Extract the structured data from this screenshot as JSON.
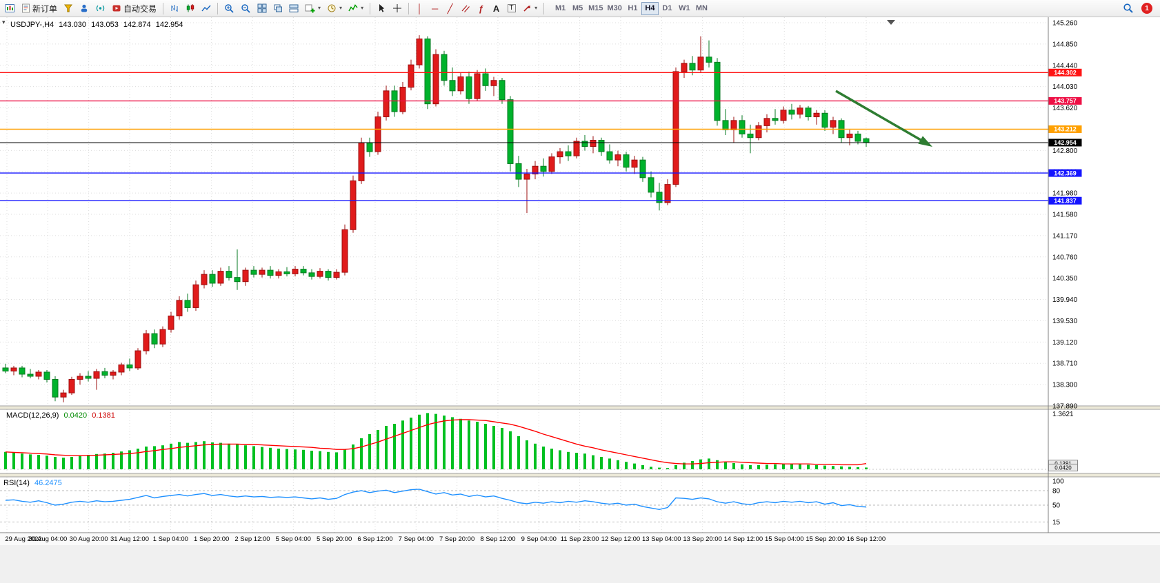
{
  "toolbar": {
    "new_order_label": "新订单",
    "auto_trading_label": "自动交易",
    "timeframes": [
      "M1",
      "M5",
      "M15",
      "M30",
      "H1",
      "H4",
      "D1",
      "W1",
      "MN"
    ],
    "active_timeframe": "H4",
    "notification_count": "1",
    "glyphs": {
      "dropdown": "▾",
      "vertical_line": "│",
      "horizontal_line": "─",
      "trendline": "╱",
      "fibonacci": "ƒ",
      "text_tool": "A",
      "label_tool": "T"
    },
    "icon_names": [
      "new-chart-icon",
      "new-order-icon",
      "market-watch-icon",
      "profiles-icon",
      "signals-icon",
      "auto-trading-icon",
      "bar-chart-icon",
      "candlestick-chart-icon",
      "line-chart-icon",
      "zoom-in-icon",
      "zoom-out-icon",
      "tile-windows-icon",
      "cascade-windows-icon",
      "arrange-windows-icon",
      "add-chart-icon",
      "chart-period-icon",
      "indicators-icon",
      "cursor-icon",
      "crosshair-icon",
      "vertical-line-icon",
      "horizontal-line-icon",
      "trendline-icon",
      "channel-icon",
      "fibonacci-icon",
      "text-icon",
      "label-icon",
      "arrow-tools-icon",
      "search-icon",
      "notification-badge"
    ]
  },
  "chart": {
    "one_click_marker": "▾",
    "symbol_ohlc": {
      "symbol": "USDJPY-,H4",
      "open": "143.030",
      "high": "143.053",
      "low": "142.874",
      "close": "142.954"
    },
    "price_axis_labels": [
      "145.260",
      "144.850",
      "144.440",
      "144.030",
      "143.620",
      "143.210",
      "142.800",
      "142.390",
      "141.980",
      "141.580",
      "141.170",
      "140.760",
      "140.350",
      "139.940",
      "139.530",
      "139.120",
      "138.710",
      "138.300",
      "137.890"
    ],
    "time_axis_labels": [
      "29 Aug 2022",
      "30 Aug 04:00",
      "30 Aug 20:00",
      "31 Aug 12:00",
      "1 Sep 04:00",
      "1 Sep 20:00",
      "2 Sep 12:00",
      "5 Sep 04:00",
      "5 Sep 20:00",
      "6 Sep 12:00",
      "7 Sep 04:00",
      "7 Sep 20:00",
      "8 Sep 12:00",
      "9 Sep 04:00",
      "11 Sep 23:00",
      "12 Sep 12:00",
      "13 Sep 04:00",
      "13 Sep 20:00",
      "14 Sep 12:00",
      "15 Sep 04:00",
      "15 Sep 20:00",
      "16 Sep 12:00"
    ],
    "levels": [
      {
        "label": "144.302",
        "price": 144.302,
        "color": "#ff1414"
      },
      {
        "label": "143.757",
        "price": 143.757,
        "color": "#ee1045"
      },
      {
        "label": "143.212",
        "price": 143.212,
        "color": "#ffa000"
      },
      {
        "label": "142.369",
        "price": 142.369,
        "color": "#1414ff"
      },
      {
        "label": "141.837",
        "price": 141.837,
        "color": "#1414ff"
      }
    ],
    "current_price": {
      "label": "142.954",
      "price": 142.954,
      "color": "#000000"
    },
    "colors": {
      "up": "#e01b1b",
      "up_stroke": "#9c0f0f",
      "down": "#00b22c",
      "down_stroke": "#067a20",
      "grid": "#dcdcdc",
      "macd_hist": "#00c020",
      "macd_signal": "#ff0000",
      "rsi_line": "#1e90ff",
      "arrow": "#2e7d32"
    }
  },
  "indicators": {
    "macd": {
      "name": "MACD(12,26,9)",
      "value_main": "0.0420",
      "value_signal": "0.1381",
      "axis_max": "1.3621"
    },
    "rsi": {
      "name": "RSI(14)",
      "value": "46.2475",
      "axis_labels": [
        "100",
        "80",
        "50",
        "15"
      ],
      "levels": [
        80,
        50,
        15
      ]
    }
  },
  "chart_data": {
    "type": "candlestick",
    "symbol": "USDJPY-",
    "timeframe": "H4",
    "title": "USDJPY- H4 with MACD(12,26,9) and RSI(14)",
    "price_range": [
      137.89,
      145.26
    ],
    "convention": "red body = bullish, green body = bearish",
    "ohlc": [
      [
        138.62,
        138.7,
        138.52,
        138.56
      ],
      [
        138.56,
        138.66,
        138.48,
        138.62
      ],
      [
        138.62,
        138.66,
        138.44,
        138.5
      ],
      [
        138.5,
        138.6,
        138.42,
        138.46
      ],
      [
        138.46,
        138.58,
        138.4,
        138.54
      ],
      [
        138.54,
        138.58,
        138.34,
        138.4
      ],
      [
        138.4,
        138.46,
        137.98,
        138.06
      ],
      [
        138.06,
        138.2,
        137.96,
        138.14
      ],
      [
        138.14,
        138.45,
        138.1,
        138.4
      ],
      [
        138.4,
        138.52,
        138.3,
        138.46
      ],
      [
        138.46,
        138.56,
        138.36,
        138.42
      ],
      [
        138.42,
        138.6,
        138.2,
        138.55
      ],
      [
        138.55,
        138.62,
        138.42,
        138.48
      ],
      [
        138.48,
        138.58,
        138.4,
        138.54
      ],
      [
        138.54,
        138.72,
        138.48,
        138.68
      ],
      [
        138.68,
        138.8,
        138.56,
        138.62
      ],
      [
        138.62,
        139.0,
        138.58,
        138.95
      ],
      [
        138.95,
        139.35,
        138.88,
        139.28
      ],
      [
        139.28,
        139.36,
        139.0,
        139.08
      ],
      [
        139.08,
        139.42,
        139.02,
        139.36
      ],
      [
        139.36,
        139.7,
        139.3,
        139.62
      ],
      [
        139.62,
        140.0,
        139.55,
        139.92
      ],
      [
        139.92,
        140.05,
        139.7,
        139.78
      ],
      [
        139.78,
        140.3,
        139.72,
        140.22
      ],
      [
        140.22,
        140.5,
        140.15,
        140.42
      ],
      [
        140.42,
        140.5,
        140.18,
        140.25
      ],
      [
        140.25,
        140.55,
        140.2,
        140.48
      ],
      [
        140.48,
        140.58,
        140.3,
        140.36
      ],
      [
        140.36,
        140.9,
        140.12,
        140.28
      ],
      [
        140.28,
        140.55,
        140.2,
        140.5
      ],
      [
        140.5,
        140.58,
        140.36,
        140.42
      ],
      [
        140.42,
        140.55,
        140.36,
        140.5
      ],
      [
        140.5,
        140.58,
        140.34,
        140.4
      ],
      [
        140.4,
        140.52,
        140.34,
        140.47
      ],
      [
        140.47,
        140.56,
        140.38,
        140.43
      ],
      [
        140.43,
        140.58,
        140.38,
        140.52
      ],
      [
        140.52,
        140.58,
        140.4,
        140.45
      ],
      [
        140.45,
        140.52,
        140.32,
        140.38
      ],
      [
        140.38,
        140.54,
        140.34,
        140.48
      ],
      [
        140.48,
        140.52,
        140.3,
        140.36
      ],
      [
        140.36,
        140.52,
        140.32,
        140.46
      ],
      [
        140.46,
        141.38,
        140.4,
        141.28
      ],
      [
        141.28,
        142.32,
        141.22,
        142.22
      ],
      [
        142.22,
        143.05,
        142.16,
        142.95
      ],
      [
        142.95,
        143.05,
        142.68,
        142.78
      ],
      [
        142.78,
        143.55,
        142.72,
        143.45
      ],
      [
        143.45,
        144.05,
        143.38,
        143.95
      ],
      [
        143.95,
        144.05,
        143.45,
        143.55
      ],
      [
        143.55,
        144.12,
        143.5,
        144.02
      ],
      [
        144.02,
        144.55,
        143.96,
        144.45
      ],
      [
        144.45,
        145.02,
        144.38,
        144.95
      ],
      [
        144.95,
        145.0,
        143.6,
        143.7
      ],
      [
        143.7,
        144.75,
        143.65,
        144.65
      ],
      [
        144.65,
        144.72,
        144.05,
        144.15
      ],
      [
        144.15,
        144.4,
        143.85,
        143.95
      ],
      [
        143.95,
        144.3,
        143.88,
        144.22
      ],
      [
        144.22,
        144.32,
        143.7,
        143.8
      ],
      [
        143.8,
        144.35,
        143.75,
        144.28
      ],
      [
        144.28,
        144.38,
        143.95,
        144.05
      ],
      [
        144.05,
        144.22,
        143.85,
        144.15
      ],
      [
        144.15,
        144.2,
        143.7,
        143.78
      ],
      [
        143.78,
        143.85,
        142.4,
        142.55
      ],
      [
        142.55,
        142.7,
        142.1,
        142.25
      ],
      [
        142.25,
        142.45,
        141.6,
        142.35
      ],
      [
        142.35,
        142.6,
        142.25,
        142.5
      ],
      [
        142.5,
        142.65,
        142.3,
        142.4
      ],
      [
        142.4,
        142.75,
        142.35,
        142.68
      ],
      [
        142.68,
        142.85,
        142.55,
        142.78
      ],
      [
        142.78,
        142.9,
        142.6,
        142.7
      ],
      [
        142.7,
        143.05,
        142.65,
        142.98
      ],
      [
        142.98,
        143.1,
        142.8,
        142.88
      ],
      [
        142.88,
        143.08,
        142.75,
        143.0
      ],
      [
        143.0,
        143.05,
        142.7,
        142.78
      ],
      [
        142.78,
        142.92,
        142.55,
        142.62
      ],
      [
        142.62,
        142.8,
        142.5,
        142.72
      ],
      [
        142.72,
        142.78,
        142.4,
        142.48
      ],
      [
        142.48,
        142.7,
        142.35,
        142.62
      ],
      [
        142.62,
        142.68,
        142.2,
        142.28
      ],
      [
        142.28,
        142.4,
        141.9,
        142.0
      ],
      [
        142.0,
        142.18,
        141.65,
        141.8
      ],
      [
        141.8,
        142.25,
        141.75,
        142.15
      ],
      [
        142.15,
        144.4,
        142.1,
        144.32
      ],
      [
        144.32,
        144.55,
        144.2,
        144.48
      ],
      [
        144.48,
        144.62,
        144.25,
        144.35
      ],
      [
        144.35,
        145.0,
        144.3,
        144.6
      ],
      [
        144.6,
        144.92,
        144.4,
        144.5
      ],
      [
        144.5,
        144.58,
        143.28,
        143.38
      ],
      [
        143.38,
        143.6,
        143.1,
        143.2
      ],
      [
        143.2,
        143.45,
        142.95,
        143.38
      ],
      [
        143.38,
        143.48,
        143.05,
        143.12
      ],
      [
        143.12,
        143.3,
        142.75,
        143.05
      ],
      [
        143.05,
        143.35,
        143.0,
        143.28
      ],
      [
        143.28,
        143.5,
        143.15,
        143.42
      ],
      [
        143.42,
        143.6,
        143.3,
        143.38
      ],
      [
        143.38,
        143.65,
        143.32,
        143.58
      ],
      [
        143.58,
        143.7,
        143.4,
        143.5
      ],
      [
        143.5,
        143.68,
        143.42,
        143.62
      ],
      [
        143.62,
        143.66,
        143.38,
        143.45
      ],
      [
        143.45,
        143.58,
        143.3,
        143.52
      ],
      [
        143.52,
        143.58,
        143.18,
        143.25
      ],
      [
        143.25,
        143.45,
        143.12,
        143.38
      ],
      [
        143.38,
        143.42,
        142.95,
        143.05
      ],
      [
        143.05,
        143.2,
        142.9,
        143.12
      ],
      [
        143.12,
        143.18,
        142.92,
        142.98
      ],
      [
        143.03,
        143.053,
        142.874,
        142.954
      ]
    ],
    "macd_histogram": [
      0.42,
      0.4,
      0.38,
      0.36,
      0.35,
      0.33,
      0.3,
      0.28,
      0.3,
      0.33,
      0.35,
      0.37,
      0.38,
      0.4,
      0.43,
      0.46,
      0.5,
      0.55,
      0.56,
      0.58,
      0.62,
      0.66,
      0.64,
      0.66,
      0.68,
      0.65,
      0.64,
      0.62,
      0.6,
      0.58,
      0.56,
      0.54,
      0.52,
      0.5,
      0.49,
      0.48,
      0.47,
      0.45,
      0.44,
      0.42,
      0.41,
      0.48,
      0.6,
      0.75,
      0.85,
      0.95,
      1.05,
      1.1,
      1.18,
      1.25,
      1.32,
      1.36,
      1.34,
      1.3,
      1.26,
      1.22,
      1.18,
      1.15,
      1.1,
      1.05,
      1.0,
      0.92,
      0.8,
      0.7,
      0.62,
      0.55,
      0.5,
      0.46,
      0.42,
      0.4,
      0.38,
      0.34,
      0.3,
      0.26,
      0.22,
      0.18,
      0.14,
      0.1,
      0.06,
      0.04,
      0.03,
      0.1,
      0.16,
      0.2,
      0.24,
      0.26,
      0.22,
      0.18,
      0.15,
      0.12,
      0.1,
      0.1,
      0.11,
      0.12,
      0.13,
      0.13,
      0.12,
      0.11,
      0.1,
      0.09,
      0.08,
      0.07,
      0.06,
      0.05,
      0.042
    ],
    "macd_signal": [
      0.42,
      0.41,
      0.4,
      0.39,
      0.38,
      0.37,
      0.35,
      0.34,
      0.33,
      0.33,
      0.33,
      0.34,
      0.35,
      0.36,
      0.37,
      0.38,
      0.4,
      0.43,
      0.45,
      0.48,
      0.5,
      0.53,
      0.55,
      0.57,
      0.59,
      0.6,
      0.61,
      0.61,
      0.61,
      0.6,
      0.6,
      0.59,
      0.58,
      0.57,
      0.56,
      0.55,
      0.54,
      0.53,
      0.51,
      0.5,
      0.48,
      0.48,
      0.5,
      0.54,
      0.6,
      0.66,
      0.73,
      0.8,
      0.87,
      0.94,
      1.01,
      1.08,
      1.13,
      1.17,
      1.19,
      1.2,
      1.2,
      1.19,
      1.18,
      1.15,
      1.12,
      1.09,
      1.04,
      0.98,
      0.92,
      0.85,
      0.79,
      0.73,
      0.67,
      0.61,
      0.56,
      0.52,
      0.47,
      0.43,
      0.39,
      0.35,
      0.31,
      0.27,
      0.23,
      0.19,
      0.16,
      0.14,
      0.13,
      0.13,
      0.14,
      0.16,
      0.17,
      0.18,
      0.18,
      0.17,
      0.16,
      0.15,
      0.14,
      0.14,
      0.13,
      0.13,
      0.13,
      0.13,
      0.12,
      0.12,
      0.12,
      0.11,
      0.11,
      0.11,
      0.138
    ],
    "rsi": [
      60,
      61,
      58,
      56,
      59,
      55,
      50,
      52,
      56,
      58,
      56,
      59,
      57,
      58,
      60,
      62,
      66,
      70,
      65,
      68,
      70,
      72,
      69,
      72,
      74,
      70,
      72,
      69,
      67,
      69,
      67,
      68,
      66,
      67,
      66,
      67,
      65,
      63,
      65,
      62,
      64,
      72,
      77,
      80,
      76,
      79,
      81,
      76,
      79,
      82,
      83,
      78,
      73,
      76,
      71,
      73,
      68,
      71,
      67,
      69,
      64,
      60,
      55,
      53,
      56,
      54,
      57,
      55,
      58,
      56,
      59,
      57,
      54,
      52,
      54,
      50,
      52,
      47,
      44,
      41,
      45,
      65,
      64,
      62,
      65,
      63,
      57,
      54,
      57,
      53,
      51,
      55,
      57,
      55,
      58,
      56,
      58,
      55,
      57,
      52,
      55,
      49,
      51,
      47,
      46.25
    ]
  }
}
